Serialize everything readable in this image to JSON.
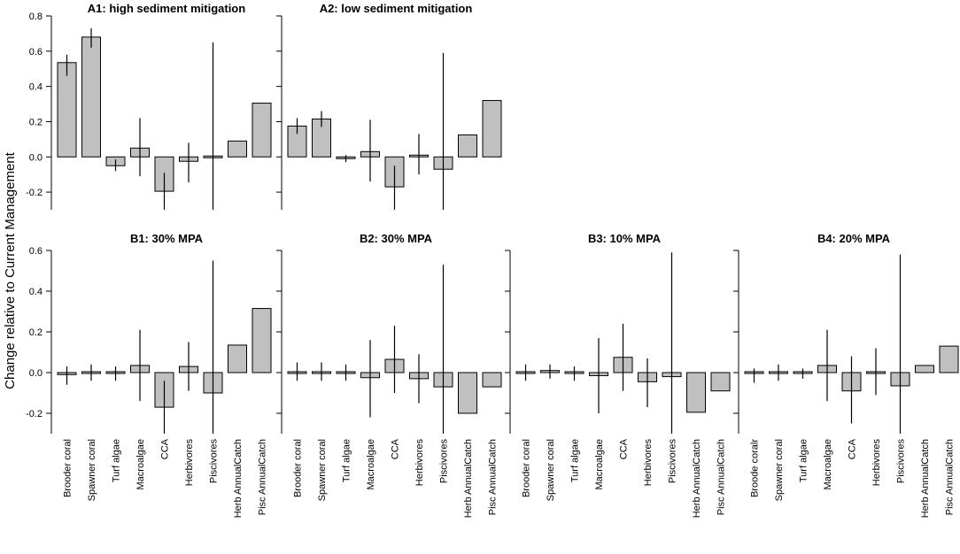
{
  "chart_data": {
    "ylabel": "Change relative to Current Management",
    "panels": [
      {
        "type": "bar",
        "title": "A1: high sediment mitigation",
        "categories": [
          "Brooder coral",
          "Spawner coral",
          "Turf algae",
          "Macroalgae",
          "CCA",
          "Herbivores",
          "Piscivores",
          "Herb AnnualCatch",
          "Pisc AnnualCatch"
        ],
        "values": [
          0.535,
          0.68,
          -0.05,
          0.05,
          -0.195,
          -0.025,
          -0.005,
          0.09,
          0.305
        ],
        "err_low": [
          0.46,
          0.62,
          -0.08,
          -0.11,
          -0.3,
          -0.145,
          -0.3,
          null,
          null
        ],
        "err_high": [
          0.58,
          0.73,
          -0.015,
          0.22,
          -0.09,
          0.08,
          0.65,
          null,
          null
        ],
        "yticks": [
          -0.2,
          0.0,
          0.2,
          0.4,
          0.6,
          0.8
        ],
        "ytick_labels": [
          "-0.2",
          "0.0",
          "0.2",
          "0.4",
          "0.6",
          "0.8"
        ],
        "ylim": [
          -0.3,
          0.8
        ],
        "show_yaxis": true,
        "show_xlabels": false
      },
      {
        "type": "bar",
        "title": "A2: low sediment mitigation",
        "categories": [
          "Brooder coral",
          "Spawner coral",
          "Turf algae",
          "Macroalgae",
          "CCA",
          "Herbivores",
          "Piscivores",
          "Herb AnnualCatch",
          "Pisc AnnualCatch"
        ],
        "values": [
          0.175,
          0.215,
          -0.01,
          0.03,
          -0.17,
          0.01,
          -0.07,
          0.125,
          0.32
        ],
        "err_low": [
          0.13,
          0.17,
          -0.03,
          -0.14,
          -0.3,
          -0.1,
          -0.3,
          null,
          null
        ],
        "err_high": [
          0.22,
          0.26,
          0.01,
          0.21,
          -0.05,
          0.13,
          0.59,
          null,
          null
        ],
        "yticks": [
          -0.2,
          0.0,
          0.2,
          0.4,
          0.6,
          0.8
        ],
        "ytick_labels": [
          "-0.2",
          "0.0",
          "0.2",
          "0.4",
          "0.6",
          "0.8"
        ],
        "ylim": [
          -0.3,
          0.8
        ],
        "show_yaxis": false,
        "show_xlabels": false
      },
      {
        "type": "bar",
        "title": "B1: 30% MPA",
        "categories": [
          "Brooder coral",
          "Spawner coral",
          "Turf algae",
          "Macroalgae",
          "CCA",
          "Herbivores",
          "Piscivores",
          "Herb AnnualCatch",
          "Pisc AnnualCatch"
        ],
        "values": [
          -0.01,
          0.0,
          0.0,
          0.035,
          -0.17,
          0.03,
          -0.1,
          0.135,
          0.315
        ],
        "err_low": [
          -0.06,
          -0.04,
          -0.04,
          -0.14,
          -0.3,
          -0.09,
          -0.3,
          null,
          null
        ],
        "err_high": [
          0.03,
          0.04,
          0.03,
          0.21,
          -0.04,
          0.15,
          0.55,
          null,
          null
        ],
        "yticks": [
          -0.2,
          0.0,
          0.2,
          0.4,
          0.6
        ],
        "ytick_labels": [
          "-0.2",
          "0.0",
          "0.2",
          "0.4",
          "0.6"
        ],
        "ylim": [
          -0.3,
          0.6
        ],
        "show_yaxis": true,
        "show_xlabels": true
      },
      {
        "type": "bar",
        "title": "B2: 30% MPA",
        "categories": [
          "Brooder coral",
          "Spawner coral",
          "Turf algae",
          "Macroalgae",
          "CCA",
          "Herbivores",
          "Piscivores",
          "Herb AnnualCatch",
          "Pisc AnnualCatch"
        ],
        "values": [
          0.0,
          0.0,
          0.0,
          -0.025,
          0.065,
          -0.03,
          -0.07,
          -0.2,
          -0.07
        ],
        "err_low": [
          -0.04,
          -0.04,
          -0.04,
          -0.22,
          -0.1,
          -0.15,
          -0.3,
          null,
          null
        ],
        "err_high": [
          0.05,
          0.05,
          0.04,
          0.16,
          0.23,
          0.09,
          0.53,
          null,
          null
        ],
        "yticks": [
          -0.2,
          0.0,
          0.2,
          0.4,
          0.6
        ],
        "ytick_labels": [
          "-0.2",
          "0.0",
          "0.2",
          "0.4",
          "0.6"
        ],
        "ylim": [
          -0.3,
          0.6
        ],
        "show_yaxis": false,
        "show_xlabels": true
      },
      {
        "type": "bar",
        "title": "B3: 10% MPA",
        "categories": [
          "Brooder coral",
          "Spawner coral",
          "Turf algae",
          "Macroalgae",
          "CCA",
          "Herbivores",
          "Piscivores",
          "Herb AnnualCatch",
          "Pisc AnnualCatch"
        ],
        "values": [
          0.0,
          0.01,
          0.0,
          -0.015,
          0.075,
          -0.045,
          -0.02,
          -0.195,
          -0.09
        ],
        "err_low": [
          -0.04,
          -0.03,
          -0.04,
          -0.2,
          -0.09,
          -0.17,
          -0.3,
          null,
          null
        ],
        "err_high": [
          0.04,
          0.04,
          0.03,
          0.17,
          0.24,
          0.07,
          0.59,
          null,
          null
        ],
        "yticks": [
          -0.2,
          0.0,
          0.2,
          0.4,
          0.6
        ],
        "ytick_labels": [
          "-0.2",
          "0.0",
          "0.2",
          "0.4",
          "0.6"
        ],
        "ylim": [
          -0.3,
          0.6
        ],
        "show_yaxis": false,
        "show_xlabels": true
      },
      {
        "type": "bar",
        "title": "B4: 20% MPA",
        "categories": [
          "Broode coralr",
          "Spawner coral",
          "Turf algae",
          "Macroalgae",
          "CCA",
          "Herbivores",
          "Piscivores",
          "Herb AnnualCatch",
          "Pisc AnnualCatch"
        ],
        "values": [
          -0.005,
          0.0,
          -0.005,
          0.035,
          -0.09,
          0.005,
          -0.065,
          0.035,
          0.13
        ],
        "err_low": [
          -0.05,
          -0.04,
          -0.03,
          -0.14,
          -0.25,
          -0.11,
          -0.3,
          null,
          null
        ],
        "err_high": [
          0.02,
          0.04,
          0.02,
          0.21,
          0.08,
          0.12,
          0.58,
          null,
          null
        ],
        "yticks": [
          -0.2,
          0.0,
          0.2,
          0.4,
          0.6
        ],
        "ytick_labels": [
          "-0.2",
          "0.0",
          "0.2",
          "0.4",
          "0.6"
        ],
        "ylim": [
          -0.3,
          0.6
        ],
        "show_yaxis": false,
        "show_xlabels": true
      }
    ]
  }
}
